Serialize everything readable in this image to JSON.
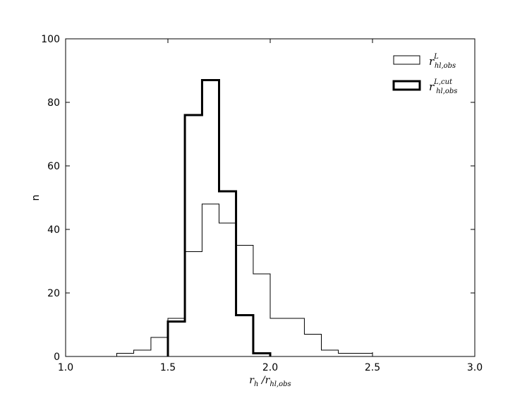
{
  "chart_data": {
    "type": "histogram",
    "xlim": [
      1.0,
      3.0
    ],
    "ylim": [
      0,
      100
    ],
    "xticks": [
      "1.0",
      "1.5",
      "2.0",
      "2.5",
      "3.0"
    ],
    "yticks": [
      "0",
      "20",
      "40",
      "60",
      "80",
      "100"
    ],
    "xlabel": "r_h / r_hl,obs",
    "ylabel": "n",
    "grid": false,
    "legend_position": "top-right",
    "series": [
      {
        "name": "r^L_hl,obs",
        "style": "thin",
        "bin_edges": [
          1.0,
          1.25,
          1.333,
          1.417,
          1.5,
          1.583,
          1.667,
          1.75,
          1.833,
          1.917,
          2.0,
          2.083,
          2.167,
          2.25,
          2.333,
          2.417,
          2.5,
          2.583,
          2.667,
          2.75
        ],
        "counts": [
          0,
          1,
          2,
          6,
          12,
          33,
          48,
          42,
          35,
          26,
          12,
          12,
          7,
          2,
          1,
          1,
          0,
          0,
          0
        ]
      },
      {
        "name": "r^L,cut_hl,obs",
        "style": "thick",
        "bin_edges": [
          1.5,
          1.583,
          1.667,
          1.75,
          1.833,
          1.917,
          2.0
        ],
        "counts": [
          11,
          76,
          87,
          52,
          13,
          1
        ]
      }
    ]
  }
}
